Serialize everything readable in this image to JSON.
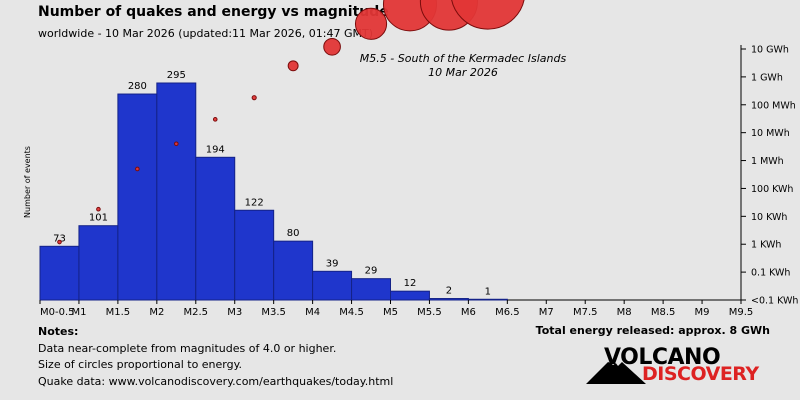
{
  "title": "Number of quakes and energy vs magnitude",
  "subtitle": "worldwide - 10 Mar 2026 (updated:11 Mar 2026, 01:47 GMT)",
  "colors": {
    "bar": "#1f36cc",
    "bar_stroke": "#142288",
    "circle": "#e23636",
    "circle_stroke": "#7a0c0c",
    "background": "#e6e6e6"
  },
  "chart_data": {
    "type": "bar",
    "ylabel": "Number of events",
    "x_ticks": [
      "M0-0.5",
      "M1",
      "M1.5",
      "M2",
      "M2.5",
      "M3",
      "M3.5",
      "M4",
      "M4.5",
      "M5",
      "M5.5",
      "M6",
      "M6.5",
      "M7",
      "M7.5",
      "M8",
      "M8.5",
      "M9",
      "M9.5"
    ],
    "bins": [
      "0-0.5",
      "0.5-1",
      "1-1.5",
      "1.5-2",
      "2-2.5",
      "2.5-3",
      "3-3.5",
      "3.5-4",
      "4-4.5",
      "4.5-5",
      "5-5.5",
      "5.5-6"
    ],
    "counts": [
      73,
      101,
      280,
      295,
      194,
      122,
      80,
      39,
      29,
      12,
      2,
      1
    ],
    "energy_axis": {
      "label_ticks": [
        "10 GWh",
        "1 GWh",
        "100 MWh",
        "10 MWh",
        "1 MWh",
        "100 KWh",
        "10 KWh",
        "1 KWh",
        "0.1 KWh",
        "<0.1 KWh"
      ]
    },
    "energy_series": {
      "name": "energy",
      "points": [
        {
          "mag": 0.25,
          "kwh": 1.2
        },
        {
          "mag": 0.75,
          "kwh": 18
        },
        {
          "mag": 1.25,
          "kwh": 500
        },
        {
          "mag": 1.75,
          "kwh": 4000
        },
        {
          "mag": 2.25,
          "kwh": 30000
        },
        {
          "mag": 2.75,
          "kwh": 180000
        },
        {
          "mag": 3.25,
          "kwh": 2500000
        },
        {
          "mag": 3.75,
          "kwh": 12000000
        },
        {
          "mag": 4.25,
          "kwh": 80000000
        },
        {
          "mag": 4.75,
          "kwh": 400000000
        },
        {
          "mag": 5.25,
          "kwh": 500000000
        },
        {
          "mag": 5.75,
          "kwh": 1100000000
        }
      ]
    },
    "annotation": {
      "line1": "M5.5 - South of the Kermadec Islands",
      "line2": "10 Mar 2026"
    }
  },
  "notes": {
    "heading": "Notes:",
    "line1": "Data near-complete from magnitudes of 4.0 or higher.",
    "line2": "Size of circles proportional to energy.",
    "line3": "Quake data: www.volcanodiscovery.com/earthquakes/today.html"
  },
  "total_energy": "Total energy released: approx. 8 GWh",
  "logo": {
    "word1": "VOLCANO",
    "word2": "DISCOVERY"
  }
}
